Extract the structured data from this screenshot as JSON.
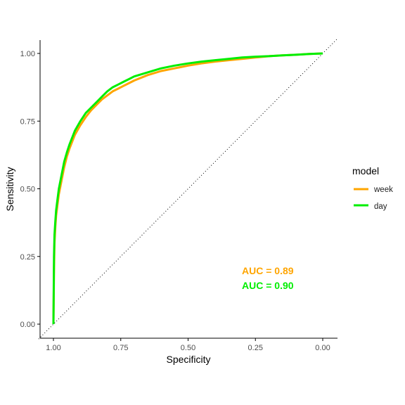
{
  "chart_data": {
    "type": "line",
    "xlabel": "Specificity",
    "ylabel": "Sensitivity",
    "x_reversed": true,
    "xlim": [
      1.0,
      0.0
    ],
    "ylim": [
      0.0,
      1.0
    ],
    "x_ticks": [
      1.0,
      0.75,
      0.5,
      0.25,
      0.0
    ],
    "x_tick_labels": [
      "1.00",
      "0.75",
      "0.50",
      "0.25",
      "0.00"
    ],
    "y_ticks": [
      0.0,
      0.25,
      0.5,
      0.75,
      1.0
    ],
    "y_tick_labels": [
      "0.00",
      "0.25",
      "0.50",
      "0.75",
      "1.00"
    ],
    "grid": false,
    "legend": {
      "title": "model",
      "placement": "right",
      "entries": [
        "week",
        "day"
      ]
    },
    "reference_line": {
      "style": "dotted",
      "from": [
        1.0,
        0.0
      ],
      "to": [
        0.0,
        1.0
      ]
    },
    "series": [
      {
        "name": "week",
        "color": "#FFA500",
        "x": [
          1.0,
          0.998,
          0.996,
          0.993,
          0.99,
          0.985,
          0.98,
          0.97,
          0.96,
          0.95,
          0.94,
          0.92,
          0.9,
          0.88,
          0.86,
          0.84,
          0.82,
          0.8,
          0.78,
          0.76,
          0.74,
          0.72,
          0.7,
          0.65,
          0.6,
          0.55,
          0.5,
          0.45,
          0.4,
          0.35,
          0.3,
          0.25,
          0.2,
          0.15,
          0.1,
          0.05,
          0.0
        ],
        "y": [
          0.0,
          0.2,
          0.3,
          0.36,
          0.4,
          0.44,
          0.48,
          0.53,
          0.58,
          0.62,
          0.65,
          0.7,
          0.735,
          0.765,
          0.79,
          0.81,
          0.83,
          0.845,
          0.86,
          0.87,
          0.88,
          0.89,
          0.9,
          0.92,
          0.935,
          0.945,
          0.955,
          0.963,
          0.97,
          0.975,
          0.98,
          0.985,
          0.99,
          0.993,
          0.995,
          0.998,
          1.0
        ]
      },
      {
        "name": "day",
        "color": "#00EE00",
        "x": [
          1.0,
          0.998,
          0.996,
          0.993,
          0.99,
          0.985,
          0.98,
          0.97,
          0.96,
          0.95,
          0.94,
          0.92,
          0.9,
          0.88,
          0.86,
          0.84,
          0.82,
          0.8,
          0.78,
          0.76,
          0.74,
          0.72,
          0.7,
          0.65,
          0.6,
          0.55,
          0.5,
          0.45,
          0.4,
          0.35,
          0.3,
          0.25,
          0.2,
          0.15,
          0.1,
          0.05,
          0.0
        ],
        "y": [
          0.0,
          0.25,
          0.33,
          0.38,
          0.42,
          0.46,
          0.5,
          0.55,
          0.6,
          0.635,
          0.665,
          0.715,
          0.75,
          0.78,
          0.8,
          0.82,
          0.84,
          0.86,
          0.875,
          0.885,
          0.895,
          0.905,
          0.915,
          0.93,
          0.945,
          0.955,
          0.963,
          0.97,
          0.975,
          0.98,
          0.985,
          0.988,
          0.99,
          0.993,
          0.995,
          0.998,
          1.0
        ]
      }
    ],
    "annotations": [
      {
        "text": "AUC = 0.89",
        "series": "week",
        "color": "#FFA500"
      },
      {
        "text": "AUC = 0.90",
        "series": "day",
        "color": "#00EE00"
      }
    ]
  }
}
